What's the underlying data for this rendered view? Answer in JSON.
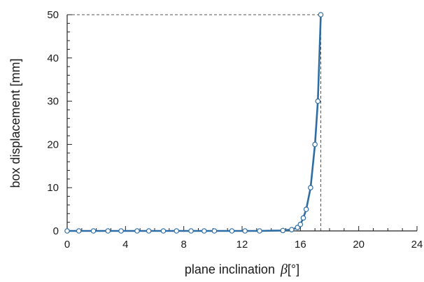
{
  "chart_data": {
    "type": "line",
    "xlabel": "plane inclination",
    "xlabel_symbol": "β",
    "xlabel_unit": "[°]",
    "ylabel": "box displacement [mm]",
    "xlim": [
      0,
      24
    ],
    "ylim": [
      0,
      50
    ],
    "xticks": [
      0,
      4,
      8,
      12,
      16,
      20,
      24
    ],
    "yticks": [
      0,
      10,
      20,
      30,
      40,
      50
    ],
    "grid": false,
    "colors": {
      "line": "#2e6da4",
      "marker_fill": "#ffffff",
      "reference_line": "#555555"
    },
    "series": [
      {
        "marker": "open-circle",
        "x": [
          0,
          0.8,
          1.8,
          2.8,
          3.7,
          4.8,
          5.6,
          6.6,
          7.5,
          8.5,
          9.4,
          10.1,
          11.3,
          12.2,
          13.2,
          14.8,
          15.4,
          15.8,
          16.0,
          16.2,
          16.4,
          16.7,
          17.0,
          17.2,
          17.4
        ],
        "y": [
          0,
          0,
          0,
          0,
          0,
          0,
          0,
          0,
          0,
          0,
          0,
          0,
          0,
          0,
          0,
          0.1,
          0.3,
          0.8,
          1.5,
          3,
          5,
          10,
          20,
          30,
          50
        ]
      }
    ],
    "reference_lines": [
      {
        "orientation": "horizontal",
        "style": "dashed",
        "y": 50,
        "x_from": 0,
        "x_to": 17.4
      },
      {
        "orientation": "vertical",
        "style": "dashed",
        "x": 17.4,
        "y_from": 0,
        "y_to": 50
      }
    ]
  }
}
